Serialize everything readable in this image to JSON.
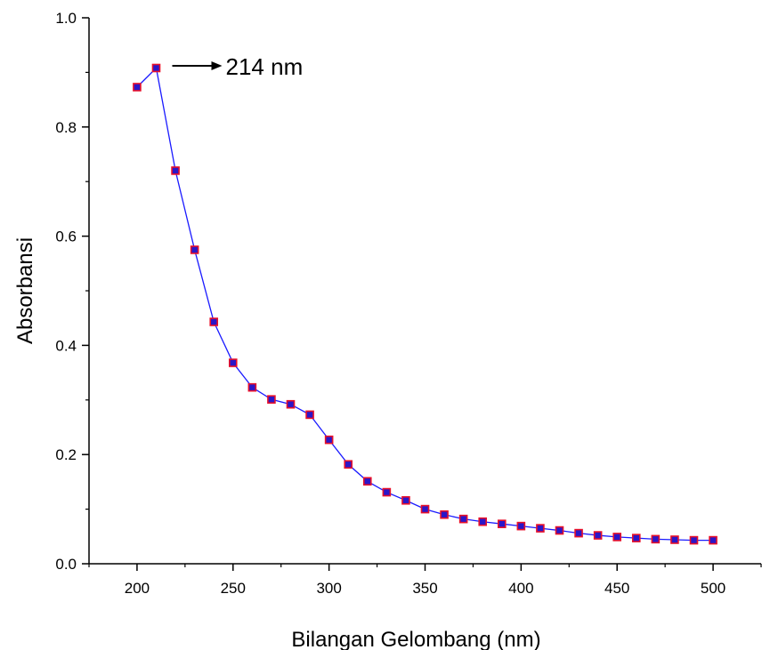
{
  "chart_data": {
    "type": "line",
    "title": "",
    "xlabel": "Bilangan Gelombang (nm)",
    "ylabel": "Absorbansi",
    "xlim": [
      175,
      525
    ],
    "ylim": [
      0.0,
      1.0
    ],
    "x_ticks": [
      200,
      250,
      300,
      350,
      400,
      450,
      500
    ],
    "y_ticks": [
      0.0,
      0.2,
      0.4,
      0.6,
      0.8,
      1.0
    ],
    "x_tick_labels": [
      "200",
      "250",
      "300",
      "350",
      "400",
      "450",
      "500"
    ],
    "y_tick_labels": [
      "0.0",
      "0.2",
      "0.4",
      "0.6",
      "0.8",
      "1.0"
    ],
    "grid": false,
    "legend": "none",
    "series": [
      {
        "line_color": "#1a1aff",
        "marker_fill": "#2a16c8",
        "marker_edge": "#e8102a",
        "marker": "square",
        "x": [
          200,
          210,
          220,
          230,
          240,
          250,
          260,
          270,
          280,
          290,
          300,
          310,
          320,
          330,
          340,
          350,
          360,
          370,
          380,
          390,
          400,
          410,
          420,
          430,
          440,
          450,
          460,
          470,
          480,
          490,
          500
        ],
        "y": [
          0.873,
          0.908,
          0.72,
          0.575,
          0.443,
          0.368,
          0.323,
          0.301,
          0.292,
          0.273,
          0.227,
          0.182,
          0.151,
          0.131,
          0.116,
          0.1,
          0.09,
          0.082,
          0.077,
          0.073,
          0.069,
          0.065,
          0.061,
          0.056,
          0.052,
          0.049,
          0.047,
          0.045,
          0.044,
          0.043,
          0.043
        ]
      }
    ],
    "annotations": [
      {
        "text": "214 nm",
        "arrow_from": [
          210,
          0.908
        ]
      }
    ]
  }
}
